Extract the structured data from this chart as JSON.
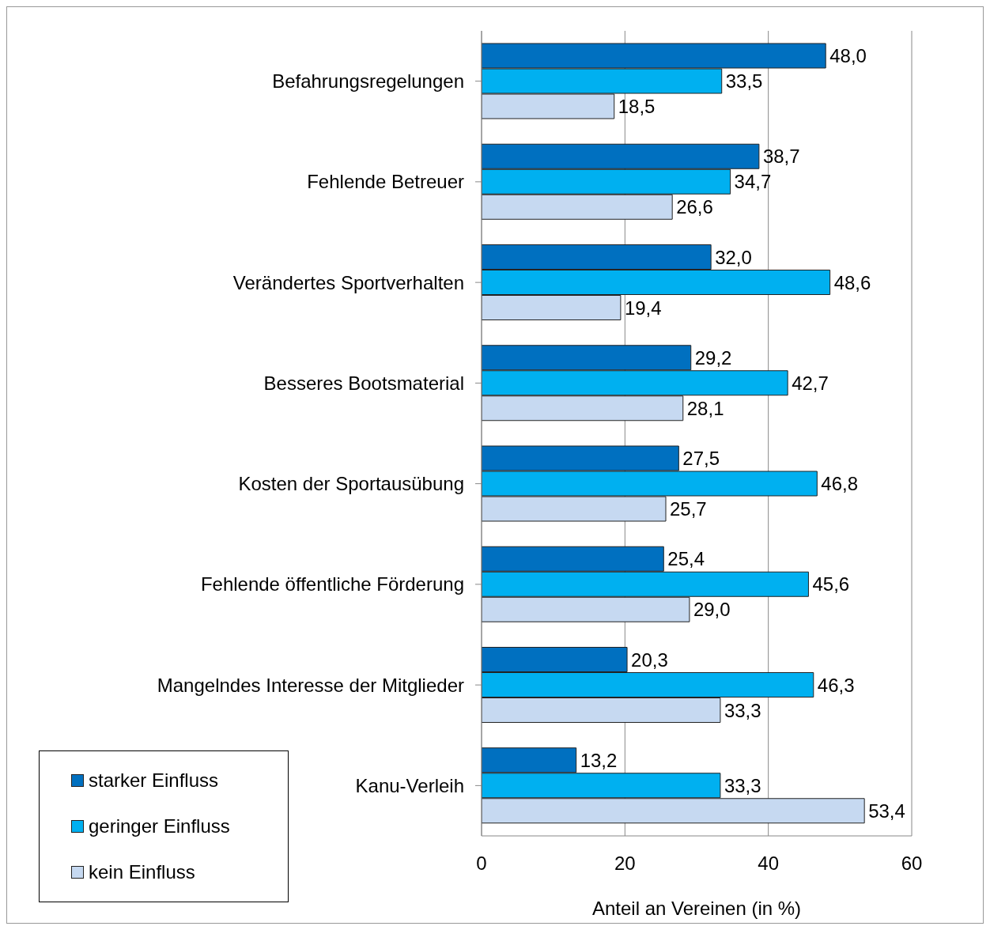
{
  "chart_data": {
    "type": "bar",
    "orientation": "horizontal",
    "xlabel": "Anteil an Vereinen (in %)",
    "categories": [
      "Befahrungsregelungen",
      "Fehlende Betreuer",
      "Verändertes Sportverhalten",
      "Besseres Bootsmaterial",
      "Kosten der Sportausübung",
      "Fehlende öffentliche Förderung",
      "Mangelndes Interesse der Mitglieder",
      "Kanu-Verleih"
    ],
    "series": [
      {
        "name": "starker Einfluss",
        "color": "#0070c0",
        "values": [
          48.0,
          38.7,
          32.0,
          29.2,
          27.5,
          25.4,
          20.3,
          13.2
        ],
        "value_labels": [
          "48,0",
          "38,7",
          "32,0",
          "29,2",
          "27,5",
          "25,4",
          "20,3",
          "13,2"
        ]
      },
      {
        "name": "geringer Einfluss",
        "color": "#00b0f0",
        "values": [
          33.5,
          34.7,
          48.6,
          42.7,
          46.8,
          45.6,
          46.3,
          33.3
        ],
        "value_labels": [
          "33,5",
          "34,7",
          "48,6",
          "42,7",
          "46,8",
          "45,6",
          "46,3",
          "33,3"
        ]
      },
      {
        "name": "kein Einfluss",
        "color": "#c6d9f1",
        "values": [
          18.5,
          26.6,
          19.4,
          28.1,
          25.7,
          29.0,
          33.3,
          53.4
        ],
        "value_labels": [
          "18,5",
          "26,6",
          "19,4",
          "28,1",
          "25,7",
          "29,0",
          "33,3",
          "53,4"
        ]
      }
    ],
    "xlim": [
      0,
      60
    ],
    "xticks": [
      0,
      20,
      40,
      60
    ],
    "grid": "x",
    "legend": "bottom left"
  }
}
